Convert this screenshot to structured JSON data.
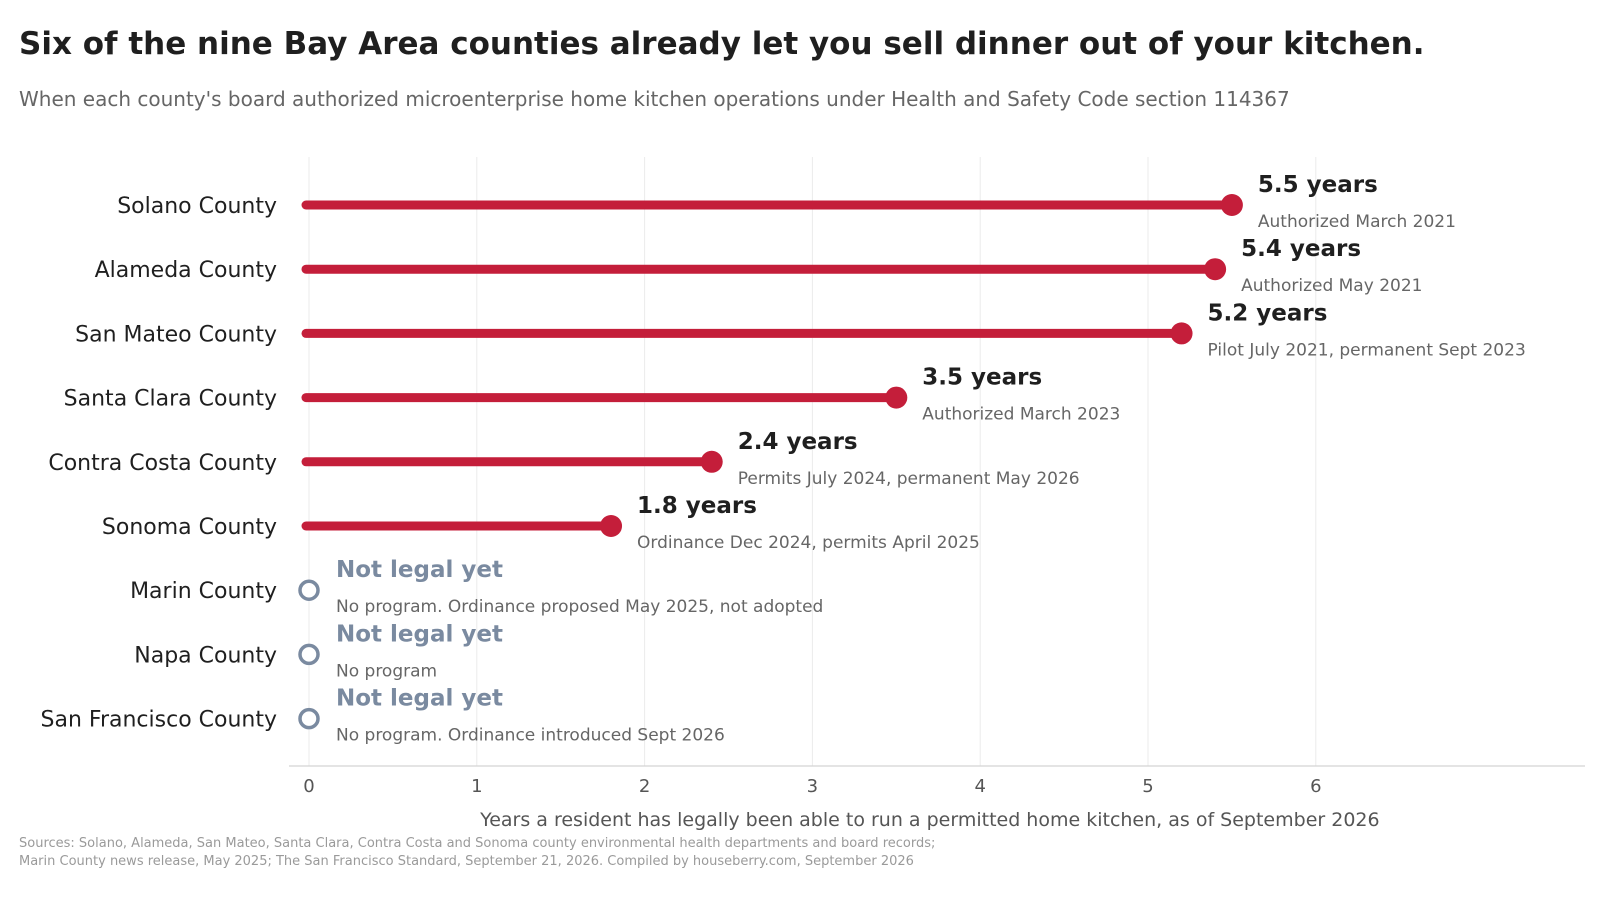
{
  "header": {
    "title": "Six of the nine Bay Area counties already let you sell dinner out of your kitchen.",
    "subtitle": "When each county's board authorized microenterprise home kitchen operations under Health and Safety Code section 114367"
  },
  "chart_data": {
    "type": "lollipop",
    "xlabel": "Years a resident has legally been able to run a permitted home kitchen, as of September 2026",
    "xlim": [
      0,
      7.2
    ],
    "xticks": [
      0,
      1,
      2,
      3,
      4,
      5,
      6
    ],
    "grid": "vertical",
    "colors": {
      "legal": "#c41e3a",
      "not_legal": "#7a8aa0",
      "value_label": "#1f1f1f",
      "note": "#666666"
    },
    "rows": [
      {
        "category": "Solano County",
        "value": 5.5,
        "label": "5.5 years",
        "note": "Authorized March 2021",
        "legal": true
      },
      {
        "category": "Alameda County",
        "value": 5.4,
        "label": "5.4 years",
        "note": "Authorized May 2021",
        "legal": true
      },
      {
        "category": "San Mateo County",
        "value": 5.2,
        "label": "5.2 years",
        "note": "Pilot July 2021, permanent Sept 2023",
        "legal": true
      },
      {
        "category": "Santa Clara County",
        "value": 3.5,
        "label": "3.5 years",
        "note": "Authorized March 2023",
        "legal": true
      },
      {
        "category": "Contra Costa County",
        "value": 2.4,
        "label": "2.4 years",
        "note": "Permits July 2024, permanent May 2026",
        "legal": true
      },
      {
        "category": "Sonoma County",
        "value": 1.8,
        "label": "1.8 years",
        "note": "Ordinance Dec 2024, permits April 2025",
        "legal": true
      },
      {
        "category": "Marin County",
        "value": 0,
        "label": "Not legal yet",
        "note": "No program. Ordinance proposed May 2025, not adopted",
        "legal": false
      },
      {
        "category": "Napa County",
        "value": 0,
        "label": "Not legal yet",
        "note": "No program",
        "legal": false
      },
      {
        "category": "San Francisco County",
        "value": 0,
        "label": "Not legal yet",
        "note": "No program. Ordinance introduced Sept 2026",
        "legal": false
      }
    ]
  },
  "footer": {
    "source_line1": "Sources: Solano, Alameda, San Mateo, Santa Clara, Contra Costa and Sonoma county environmental health departments and board records;",
    "source_line2": "Marin County news release, May 2025; The San Francisco Standard, September 21, 2026. Compiled by houseberry.com, September 2026"
  }
}
